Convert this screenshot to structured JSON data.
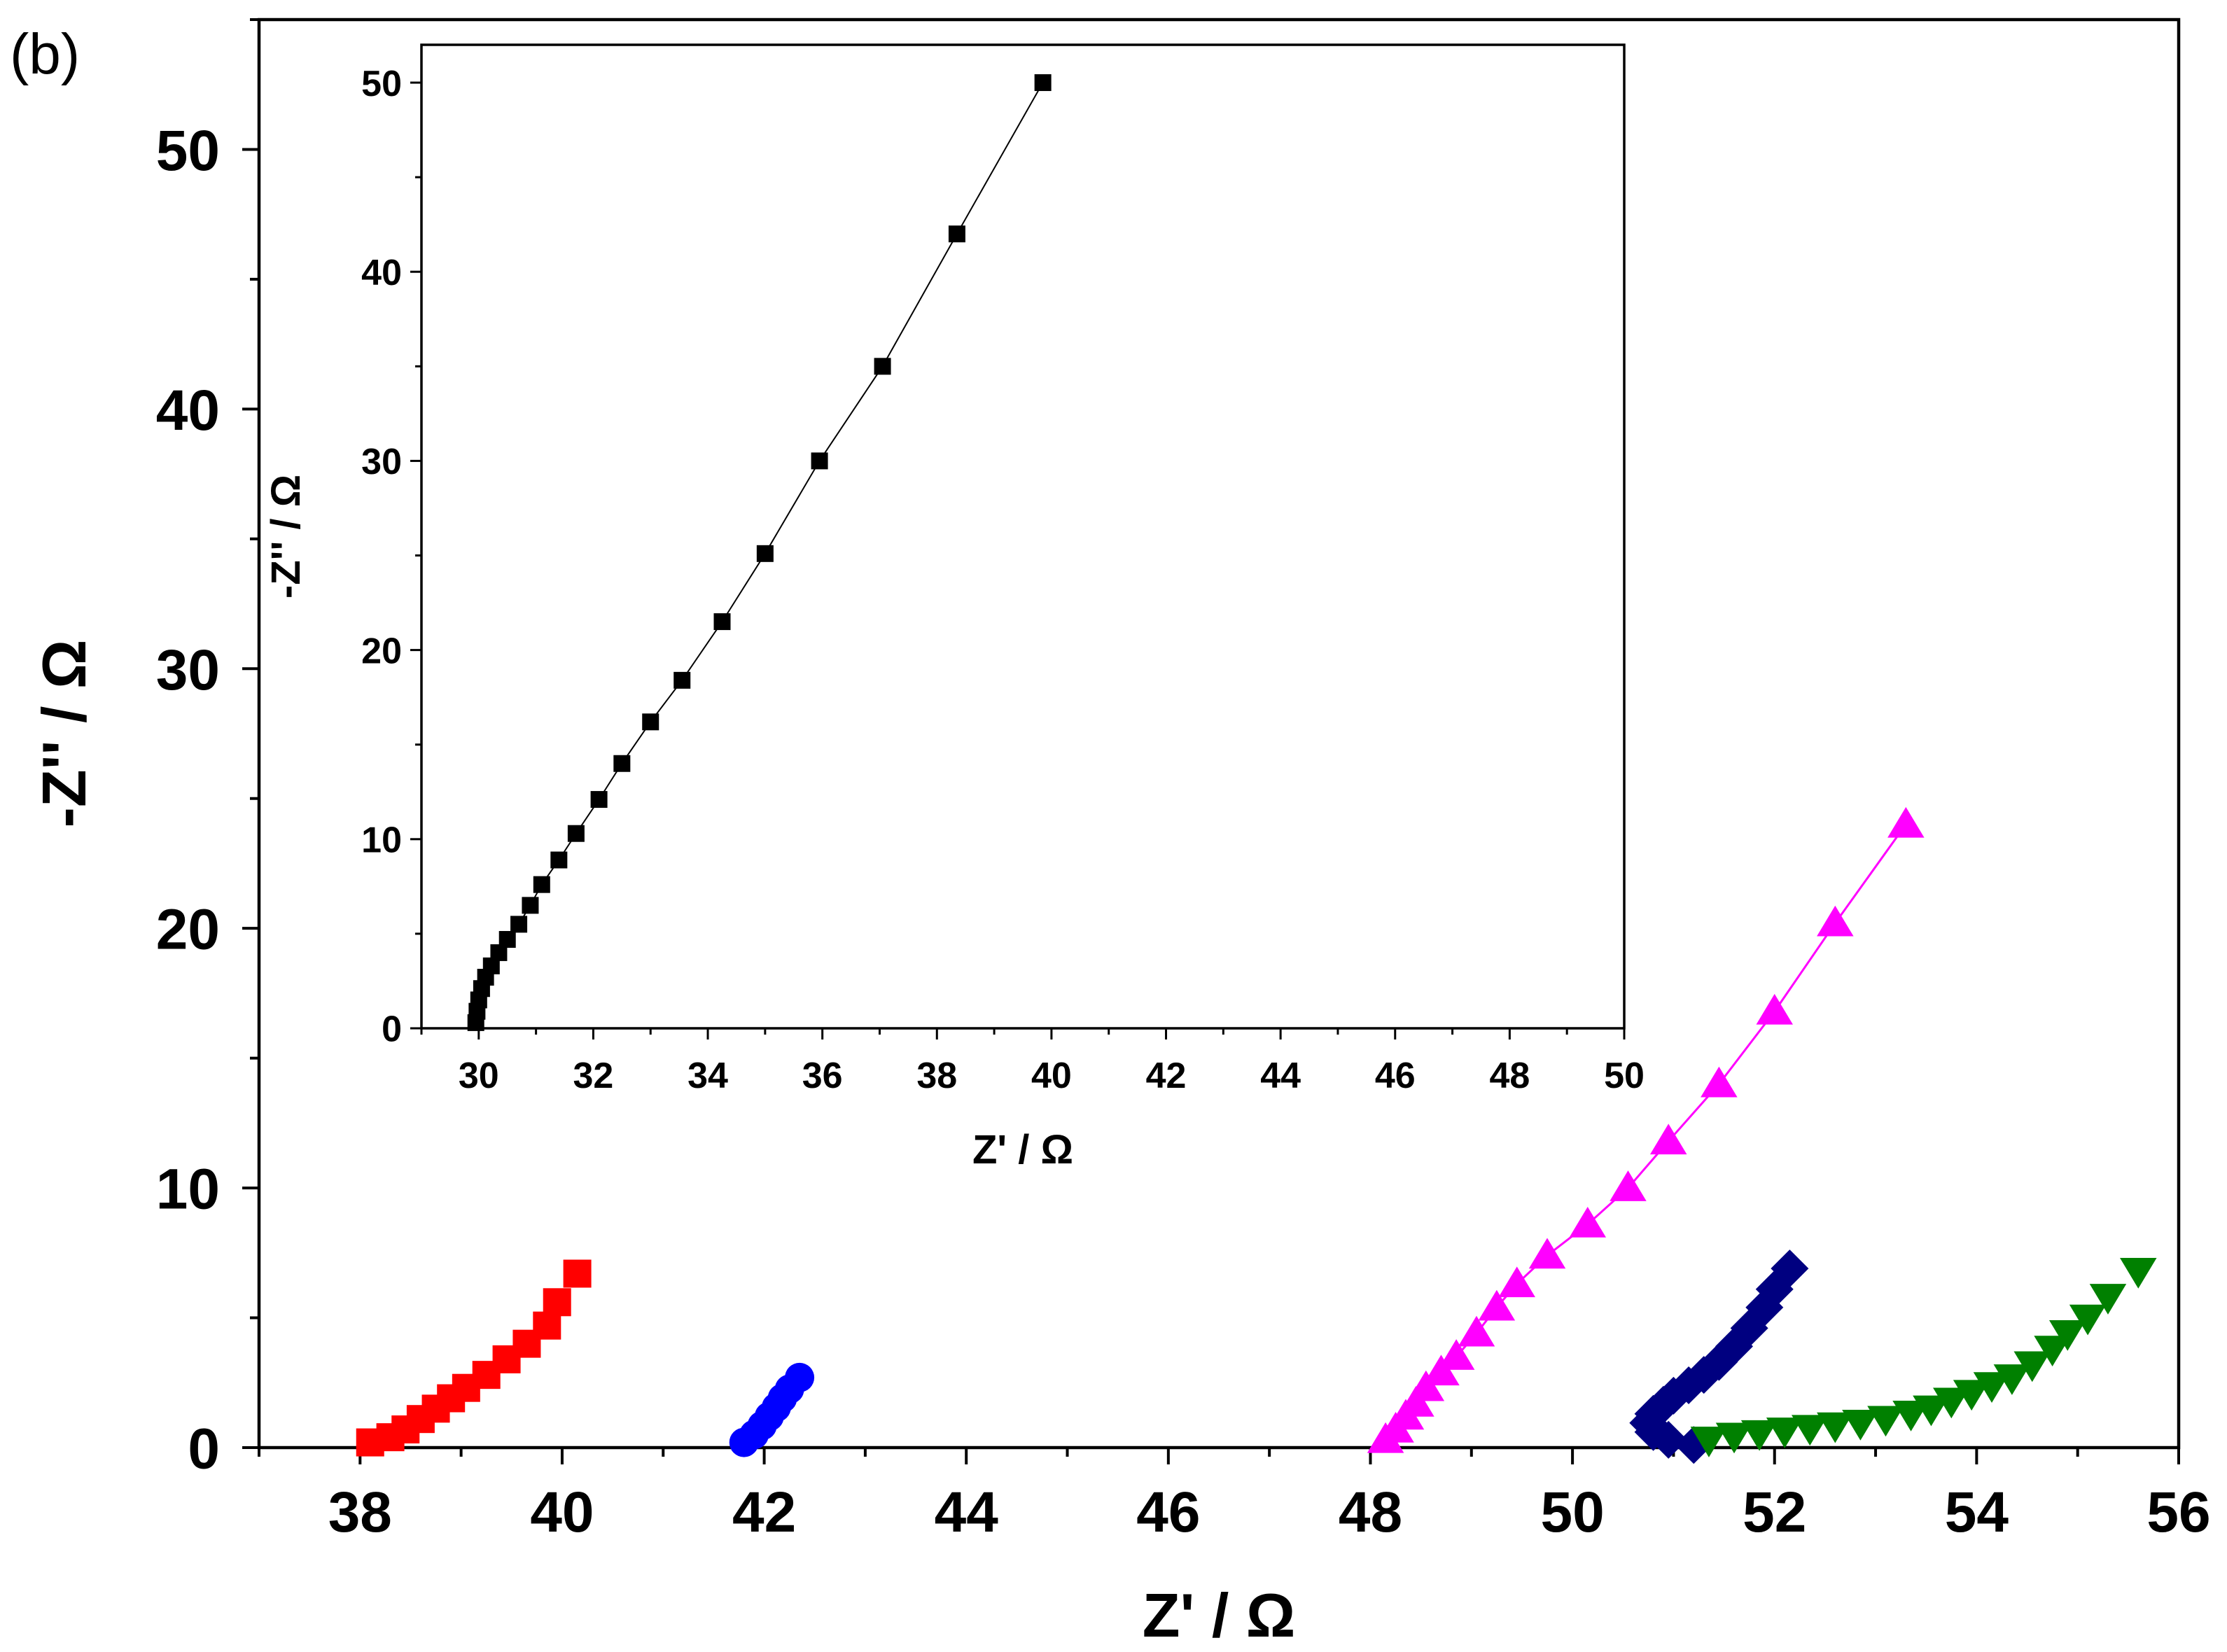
{
  "panel_label": "(b)",
  "chart_data": [
    {
      "id": "main",
      "type": "scatter",
      "xlabel": "Z' / Ω",
      "ylabel": "-Z'' / Ω",
      "xlim": [
        37,
        56
      ],
      "ylim": [
        0,
        55
      ],
      "xticks": [
        38,
        40,
        42,
        44,
        46,
        48,
        50,
        52,
        54,
        56
      ],
      "yticks": [
        0,
        10,
        20,
        30,
        40,
        50
      ],
      "grid": false,
      "series": [
        {
          "marker": "square",
          "color": "#ff0000",
          "line": false,
          "points": [
            [
              38.1,
              0.2
            ],
            [
              38.3,
              0.4
            ],
            [
              38.45,
              0.7
            ],
            [
              38.6,
              1.1
            ],
            [
              38.75,
              1.5
            ],
            [
              38.9,
              1.9
            ],
            [
              39.05,
              2.3
            ],
            [
              39.25,
              2.8
            ],
            [
              39.45,
              3.4
            ],
            [
              39.65,
              4.0
            ],
            [
              39.85,
              4.7
            ],
            [
              39.95,
              5.6
            ],
            [
              40.15,
              6.7
            ]
          ]
        },
        {
          "marker": "circle",
          "color": "#0000ff",
          "line": false,
          "points": [
            [
              41.8,
              0.2
            ],
            [
              41.9,
              0.5
            ],
            [
              41.98,
              0.85
            ],
            [
              42.05,
              1.2
            ],
            [
              42.12,
              1.55
            ],
            [
              42.18,
              1.9
            ],
            [
              42.25,
              2.25
            ],
            [
              42.35,
              2.7
            ]
          ]
        },
        {
          "marker": "triangle-up",
          "color": "#ff00ff",
          "line": true,
          "points": [
            [
              48.15,
              0.3
            ],
            [
              48.25,
              0.7
            ],
            [
              48.35,
              1.2
            ],
            [
              48.45,
              1.7
            ],
            [
              48.55,
              2.3
            ],
            [
              48.7,
              2.9
            ],
            [
              48.85,
              3.5
            ],
            [
              49.05,
              4.4
            ],
            [
              49.25,
              5.4
            ],
            [
              49.45,
              6.3
            ],
            [
              49.75,
              7.4
            ],
            [
              50.15,
              8.6
            ],
            [
              50.55,
              10.0
            ],
            [
              50.95,
              11.8
            ],
            [
              51.45,
              14.0
            ],
            [
              52.0,
              16.8
            ],
            [
              52.6,
              20.2
            ],
            [
              53.3,
              24.0
            ]
          ]
        },
        {
          "marker": "diamond",
          "color": "#000080",
          "line": false,
          "points": [
            [
              51.2,
              0.1
            ],
            [
              50.95,
              0.3
            ],
            [
              50.8,
              0.6
            ],
            [
              50.75,
              0.95
            ],
            [
              50.8,
              1.3
            ],
            [
              50.9,
              1.65
            ],
            [
              51.0,
              2.0
            ],
            [
              51.15,
              2.4
            ],
            [
              51.3,
              2.8
            ],
            [
              51.45,
              3.3
            ],
            [
              51.6,
              3.9
            ],
            [
              51.75,
              4.6
            ],
            [
              51.9,
              5.4
            ],
            [
              52.0,
              6.1
            ],
            [
              52.15,
              6.9
            ]
          ]
        },
        {
          "marker": "triangle-down",
          "color": "#008000",
          "line": false,
          "points": [
            [
              51.35,
              0.3
            ],
            [
              51.6,
              0.45
            ],
            [
              51.85,
              0.55
            ],
            [
              52.1,
              0.65
            ],
            [
              52.35,
              0.75
            ],
            [
              52.6,
              0.85
            ],
            [
              52.85,
              0.95
            ],
            [
              53.1,
              1.1
            ],
            [
              53.35,
              1.3
            ],
            [
              53.55,
              1.5
            ],
            [
              53.75,
              1.8
            ],
            [
              53.95,
              2.1
            ],
            [
              54.15,
              2.4
            ],
            [
              54.35,
              2.7
            ],
            [
              54.55,
              3.2
            ],
            [
              54.75,
              3.8
            ],
            [
              54.9,
              4.4
            ],
            [
              55.1,
              5.0
            ],
            [
              55.3,
              5.8
            ],
            [
              55.6,
              6.8
            ]
          ]
        }
      ]
    },
    {
      "id": "inset",
      "type": "line",
      "xlabel": "Z' / Ω",
      "ylabel": "-Z'' / Ω",
      "xlim": [
        29,
        50
      ],
      "ylim": [
        0,
        52
      ],
      "xticks": [
        30,
        32,
        34,
        36,
        38,
        40,
        42,
        44,
        46,
        48,
        50
      ],
      "yticks": [
        0,
        10,
        20,
        30,
        40,
        50
      ],
      "grid": false,
      "series": [
        {
          "marker": "square",
          "color": "#000000",
          "line": true,
          "points": [
            [
              29.95,
              0.3
            ],
            [
              29.97,
              0.9
            ],
            [
              30.0,
              1.5
            ],
            [
              30.05,
              2.1
            ],
            [
              30.12,
              2.7
            ],
            [
              30.22,
              3.3
            ],
            [
              30.35,
              4.0
            ],
            [
              30.5,
              4.7
            ],
            [
              30.7,
              5.5
            ],
            [
              30.9,
              6.5
            ],
            [
              31.1,
              7.6
            ],
            [
              31.4,
              8.9
            ],
            [
              31.7,
              10.3
            ],
            [
              32.1,
              12.1
            ],
            [
              32.5,
              14.0
            ],
            [
              33.0,
              16.2
            ],
            [
              33.55,
              18.4
            ],
            [
              34.25,
              21.5
            ],
            [
              35.0,
              25.1
            ],
            [
              35.95,
              30.0
            ],
            [
              37.05,
              35.0
            ],
            [
              38.35,
              42.0
            ],
            [
              39.85,
              50.0
            ]
          ]
        }
      ]
    }
  ]
}
